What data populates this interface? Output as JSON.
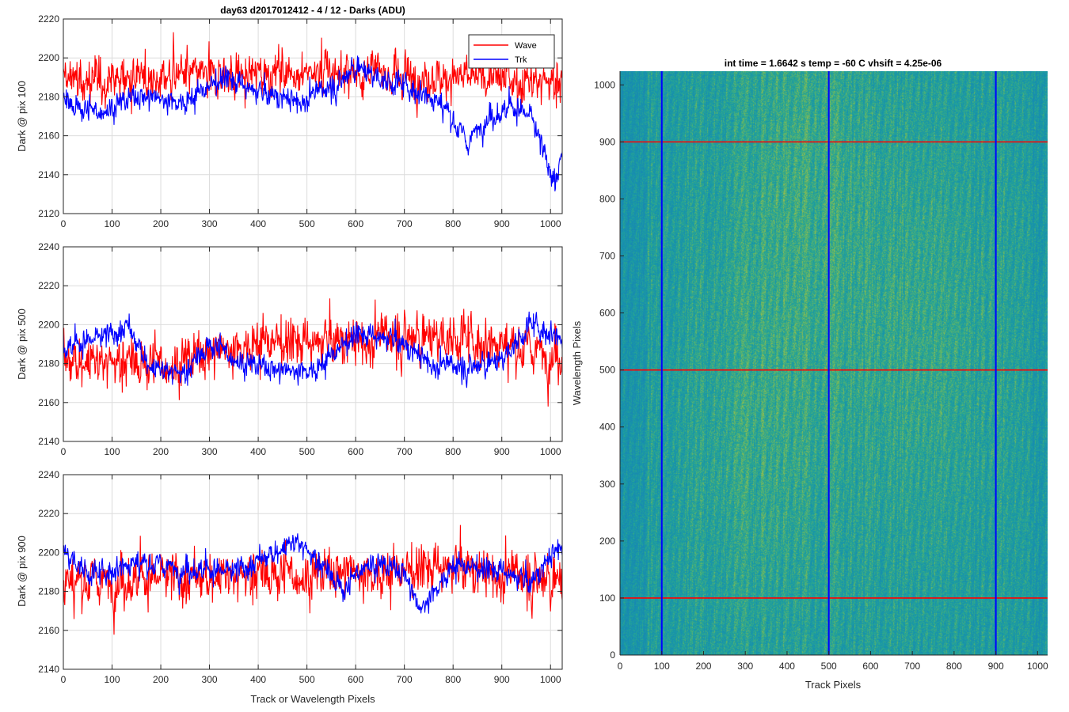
{
  "chart_data": [
    {
      "type": "line",
      "title": "day63 d2017012412 - 4 / 12 - Darks (ADU)",
      "ylabel": "Dark @ pix 100",
      "xlabel": "",
      "xlim": [
        0,
        1024
      ],
      "ylim": [
        2120,
        2220
      ],
      "xticks": [
        0,
        100,
        200,
        300,
        400,
        500,
        600,
        700,
        800,
        900,
        1000
      ],
      "yticks": [
        2120,
        2140,
        2160,
        2180,
        2200,
        2220
      ],
      "grid": true,
      "legend": "top-right",
      "series": [
        {
          "name": "Wave",
          "color": "#ff0000",
          "mean": 2190,
          "noise": 8,
          "trend": [
            [
              0,
              2188
            ],
            [
              200,
              2190
            ],
            [
              400,
              2192
            ],
            [
              600,
              2193
            ],
            [
              800,
              2189
            ],
            [
              1024,
              2188
            ]
          ]
        },
        {
          "name": "Trk",
          "color": "#0000ff",
          "mean": 2181,
          "noise": 4.5,
          "trend": [
            [
              0,
              2178
            ],
            [
              60,
              2172
            ],
            [
              150,
              2180
            ],
            [
              250,
              2178
            ],
            [
              330,
              2190
            ],
            [
              400,
              2182
            ],
            [
              480,
              2178
            ],
            [
              560,
              2186
            ],
            [
              600,
              2196
            ],
            [
              660,
              2188
            ],
            [
              720,
              2184
            ],
            [
              780,
              2176
            ],
            [
              830,
              2156
            ],
            [
              860,
              2168
            ],
            [
              920,
              2175
            ],
            [
              960,
              2170
            ],
            [
              990,
              2148
            ],
            [
              1010,
              2138
            ],
            [
              1024,
              2150
            ]
          ]
        }
      ]
    },
    {
      "type": "line",
      "title": "",
      "ylabel": "Dark @ pix 500",
      "xlabel": "",
      "xlim": [
        0,
        1024
      ],
      "ylim": [
        2140,
        2240
      ],
      "xticks": [
        0,
        100,
        200,
        300,
        400,
        500,
        600,
        700,
        800,
        900,
        1000
      ],
      "yticks": [
        2140,
        2160,
        2180,
        2200,
        2220,
        2240
      ],
      "grid": true,
      "series": [
        {
          "name": "Wave",
          "color": "#ff0000",
          "mean": 2185,
          "noise": 9,
          "trend": [
            [
              0,
              2182
            ],
            [
              200,
              2180
            ],
            [
              300,
              2185
            ],
            [
              400,
              2192
            ],
            [
              500,
              2190
            ],
            [
              600,
              2192
            ],
            [
              700,
              2195
            ],
            [
              800,
              2193
            ],
            [
              900,
              2190
            ],
            [
              1024,
              2185
            ]
          ]
        },
        {
          "name": "Trk",
          "color": "#0000ff",
          "mean": 2188,
          "noise": 4.5,
          "trend": [
            [
              0,
              2188
            ],
            [
              100,
              2195
            ],
            [
              130,
              2200
            ],
            [
              180,
              2178
            ],
            [
              250,
              2175
            ],
            [
              300,
              2190
            ],
            [
              380,
              2180
            ],
            [
              450,
              2176
            ],
            [
              520,
              2178
            ],
            [
              600,
              2195
            ],
            [
              680,
              2192
            ],
            [
              760,
              2180
            ],
            [
              820,
              2178
            ],
            [
              900,
              2182
            ],
            [
              960,
              2200
            ],
            [
              1000,
              2196
            ],
            [
              1024,
              2192
            ]
          ]
        }
      ]
    },
    {
      "type": "line",
      "title": "",
      "ylabel": "Dark @ pix 900",
      "xlabel": "Track or Wavelength Pixels",
      "xlim": [
        0,
        1024
      ],
      "ylim": [
        2140,
        2240
      ],
      "xticks": [
        0,
        100,
        200,
        300,
        400,
        500,
        600,
        700,
        800,
        900,
        1000
      ],
      "yticks": [
        2140,
        2160,
        2180,
        2200,
        2220,
        2240
      ],
      "grid": true,
      "series": [
        {
          "name": "Wave",
          "color": "#ff0000",
          "mean": 2187,
          "noise": 9,
          "trend": [
            [
              0,
              2185
            ],
            [
              300,
              2188
            ],
            [
              600,
              2190
            ],
            [
              800,
              2192
            ],
            [
              1024,
              2186
            ]
          ]
        },
        {
          "name": "Trk",
          "color": "#0000ff",
          "mean": 2192,
          "noise": 4.5,
          "trend": [
            [
              0,
              2200
            ],
            [
              60,
              2188
            ],
            [
              150,
              2195
            ],
            [
              250,
              2192
            ],
            [
              350,
              2190
            ],
            [
              480,
              2206
            ],
            [
              520,
              2196
            ],
            [
              580,
              2180
            ],
            [
              620,
              2196
            ],
            [
              700,
              2190
            ],
            [
              730,
              2170
            ],
            [
              800,
              2194
            ],
            [
              900,
              2190
            ],
            [
              960,
              2184
            ],
            [
              1000,
              2198
            ],
            [
              1024,
              2205
            ]
          ]
        }
      ]
    },
    {
      "type": "heatmap",
      "title": "int time = 1.6642 s    temp = -60 C    vhsift = 4.25e-06",
      "xlabel": "Track Pixels",
      "ylabel": "Wavelength Pixels",
      "xlim": [
        0,
        1024
      ],
      "ylim": [
        0,
        1024
      ],
      "xticks": [
        0,
        100,
        200,
        300,
        400,
        500,
        600,
        700,
        800,
        900,
        1000
      ],
      "yticks": [
        0,
        100,
        200,
        300,
        400,
        500,
        600,
        700,
        800,
        900,
        1000
      ],
      "colormap": "parula",
      "vertical_lines": {
        "color": "#0000ff",
        "x": [
          100,
          500,
          900
        ]
      },
      "horizontal_lines": {
        "color": "#ff0000",
        "y": [
          100,
          500,
          900
        ]
      }
    }
  ]
}
